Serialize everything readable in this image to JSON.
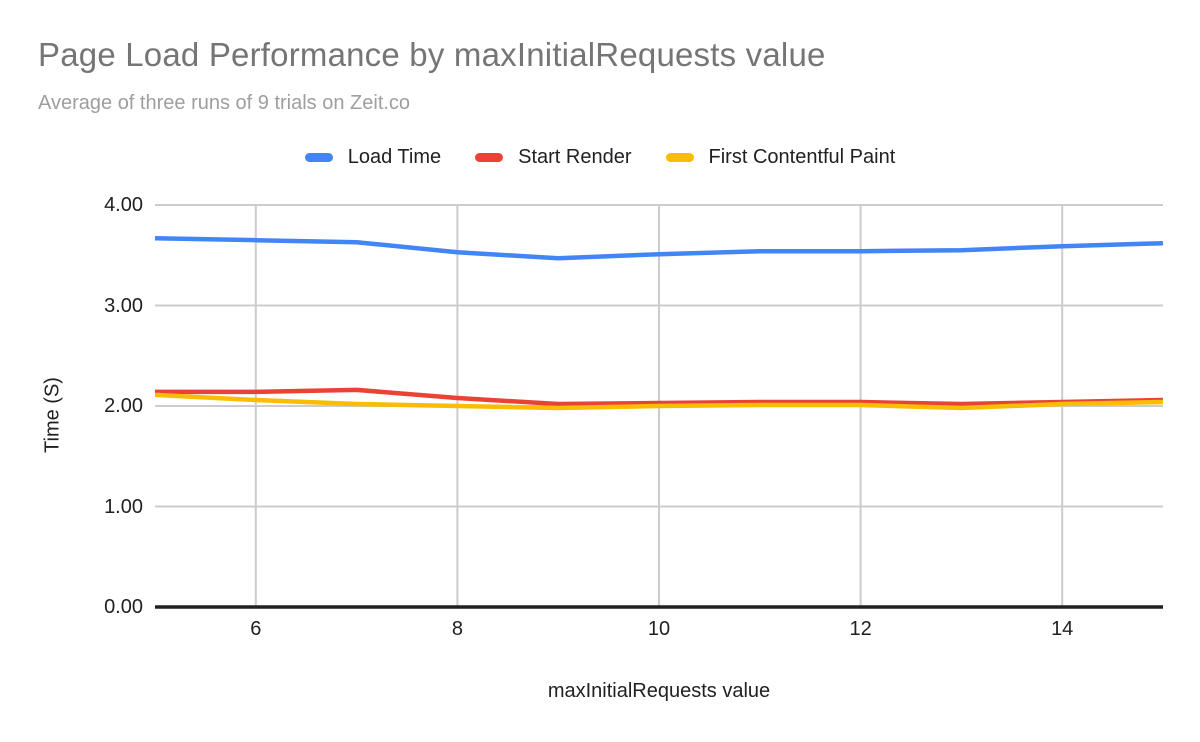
{
  "chart_data": {
    "type": "line",
    "title": "Page Load Performance by maxInitialRequests value",
    "subtitle": "Average of three runs of 9 trials on Zeit.co",
    "xlabel": "maxInitialRequests value",
    "ylabel": "Time (S)",
    "x": [
      5,
      6,
      7,
      8,
      9,
      10,
      11,
      12,
      13,
      14,
      15
    ],
    "series": [
      {
        "name": "Load Time",
        "color": "#4285f4",
        "values": [
          3.67,
          3.65,
          3.63,
          3.53,
          3.47,
          3.51,
          3.54,
          3.54,
          3.55,
          3.59,
          3.62
        ]
      },
      {
        "name": "Start Render",
        "color": "#ea4335",
        "values": [
          2.14,
          2.14,
          2.16,
          2.08,
          2.02,
          2.03,
          2.04,
          2.04,
          2.02,
          2.04,
          2.06
        ]
      },
      {
        "name": "First Contentful Paint",
        "color": "#fbbc04",
        "values": [
          2.11,
          2.06,
          2.02,
          2.0,
          1.98,
          2.0,
          2.01,
          2.01,
          1.98,
          2.02,
          2.04
        ]
      }
    ],
    "xlim": [
      5,
      15
    ],
    "ylim": [
      0,
      4
    ],
    "x_ticks": [
      {
        "label": "6",
        "value": 6
      },
      {
        "label": "8",
        "value": 8
      },
      {
        "label": "10",
        "value": 10
      },
      {
        "label": "12",
        "value": 12
      },
      {
        "label": "14",
        "value": 14
      }
    ],
    "y_ticks": [
      {
        "label": "0.00",
        "value": 0
      },
      {
        "label": "1.00",
        "value": 1
      },
      {
        "label": "2.00",
        "value": 2
      },
      {
        "label": "3.00",
        "value": 3
      },
      {
        "label": "4.00",
        "value": 4
      }
    ],
    "grid": true,
    "legend_position": "top"
  },
  "colors": {
    "background": "#ffffff",
    "title_text": "#757575",
    "subtitle_text": "#9e9e9e",
    "axis_text": "#202124",
    "gridline": "#cccccc",
    "axis_line": "#212121"
  }
}
